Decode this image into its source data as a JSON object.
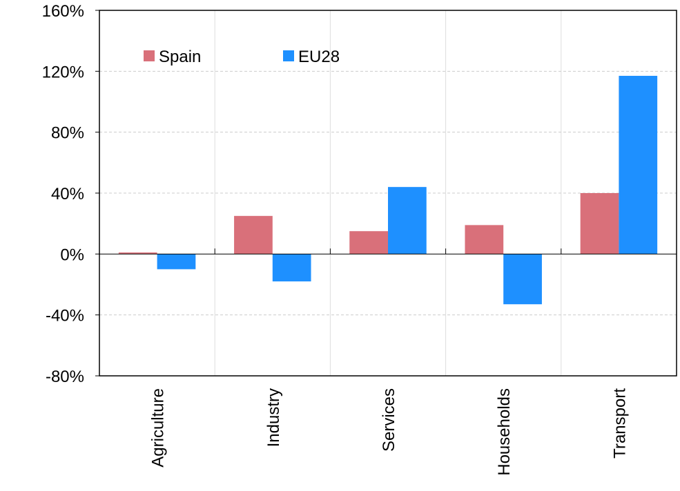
{
  "chart_data": {
    "type": "bar",
    "categories": [
      "Agriculture",
      "Industry",
      "Services",
      "Households",
      "Transport"
    ],
    "series": [
      {
        "name": "Spain",
        "color": "#d9707a",
        "values": [
          1,
          25,
          15,
          19,
          40
        ]
      },
      {
        "name": "EU28",
        "color": "#1e90ff",
        "values": [
          -10,
          -18,
          44,
          -33,
          117
        ]
      }
    ],
    "ylim": [
      -80,
      160
    ],
    "yticks": [
      160,
      120,
      80,
      40,
      0,
      -40,
      -80
    ],
    "ytick_labels": [
      "160%",
      "120%",
      "80%",
      "40%",
      "0%",
      "-40%",
      "-80%"
    ],
    "grid": true,
    "legend": {
      "position": "top-left",
      "entries": [
        "Spain",
        "EU28"
      ]
    }
  }
}
